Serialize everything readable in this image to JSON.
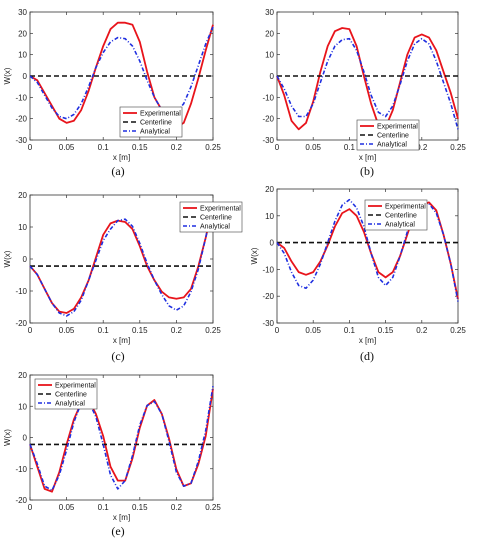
{
  "chart_data": [
    {
      "type": "line",
      "caption": "(a)",
      "xlabel": "x [m]",
      "ylabel": "W(x)",
      "xlim": [
        0,
        0.25
      ],
      "ylim": [
        -30,
        30
      ],
      "xticks": [
        "0",
        "0.05",
        "0.1",
        "0.15",
        "0.2",
        "0.25"
      ],
      "yticks": [
        "-30",
        "-20",
        "-10",
        "0",
        "10",
        "20",
        "30"
      ],
      "legend": "bottom-center",
      "series": [
        {
          "name": "Experimental",
          "color": "#e8141b",
          "dash": "solid",
          "x": [
            0,
            0.01,
            0.02,
            0.03,
            0.04,
            0.05,
            0.06,
            0.07,
            0.08,
            0.09,
            0.1,
            0.11,
            0.12,
            0.13,
            0.14,
            0.15,
            0.16,
            0.17,
            0.18,
            0.19,
            0.2,
            0.21,
            0.22,
            0.23,
            0.24,
            0.25
          ],
          "y": [
            0,
            -2,
            -8,
            -14,
            -20,
            -22,
            -21,
            -16,
            -7,
            4,
            14,
            22,
            25,
            25,
            24,
            16,
            2,
            -10,
            -16,
            -21,
            -24,
            -22,
            -13,
            -1,
            12,
            24
          ]
        },
        {
          "name": "Centerline",
          "color": "#111111",
          "dash": "dashed",
          "x": [
            0,
            0.25
          ],
          "y": [
            0,
            0
          ]
        },
        {
          "name": "Analytical",
          "color": "#1f2fe0",
          "dash": "dashdot",
          "x": [
            0,
            0.01,
            0.02,
            0.03,
            0.04,
            0.05,
            0.06,
            0.07,
            0.08,
            0.09,
            0.1,
            0.11,
            0.12,
            0.13,
            0.14,
            0.15,
            0.16,
            0.17,
            0.18,
            0.19,
            0.2,
            0.21,
            0.22,
            0.23,
            0.24,
            0.25
          ],
          "y": [
            0,
            -3,
            -9,
            -15,
            -19,
            -20,
            -18,
            -13,
            -5,
            4,
            11,
            16,
            18,
            17.5,
            14,
            7,
            -2,
            -10,
            -16,
            -18,
            -17,
            -13,
            -5,
            5,
            15,
            23
          ]
        }
      ]
    },
    {
      "type": "line",
      "caption": "(b)",
      "xlabel": "x [m]",
      "ylabel": "",
      "xlim": [
        0,
        0.25
      ],
      "ylim": [
        -30,
        30
      ],
      "xticks": [
        "0",
        "0.05",
        "0.1",
        "0.15",
        "0.2",
        "0.25"
      ],
      "yticks": [
        "-30",
        "-20",
        "-10",
        "0",
        "10",
        "20",
        "30"
      ],
      "legend": "bottom-left",
      "series": [
        {
          "name": "Experimental",
          "color": "#e8141b",
          "dash": "solid",
          "x": [
            0,
            0.01,
            0.02,
            0.03,
            0.04,
            0.05,
            0.06,
            0.07,
            0.08,
            0.09,
            0.1,
            0.11,
            0.12,
            0.13,
            0.14,
            0.15,
            0.16,
            0.17,
            0.18,
            0.19,
            0.2,
            0.21,
            0.22,
            0.23,
            0.24,
            0.25
          ],
          "y": [
            0,
            -9,
            -21,
            -25,
            -22,
            -12,
            2,
            14,
            21,
            22.5,
            22,
            14,
            0,
            -13,
            -23,
            -24,
            -16,
            -3,
            10,
            18,
            19.5,
            18,
            12,
            2,
            -8,
            -20
          ]
        },
        {
          "name": "Centerline",
          "color": "#111111",
          "dash": "dashed",
          "x": [
            0,
            0.25
          ],
          "y": [
            0,
            0
          ]
        },
        {
          "name": "Analytical",
          "color": "#1f2fe0",
          "dash": "dashdot",
          "x": [
            0,
            0.01,
            0.02,
            0.03,
            0.04,
            0.05,
            0.06,
            0.07,
            0.08,
            0.09,
            0.1,
            0.11,
            0.12,
            0.13,
            0.14,
            0.15,
            0.16,
            0.17,
            0.18,
            0.19,
            0.2,
            0.21,
            0.22,
            0.23,
            0.24,
            0.25
          ],
          "y": [
            0,
            -6,
            -14,
            -19,
            -19,
            -13,
            -3,
            7,
            14,
            17,
            17.5,
            12,
            2,
            -9,
            -17,
            -19,
            -14,
            -4,
            7,
            15,
            17.5,
            15,
            7,
            -3,
            -13,
            -25
          ]
        }
      ]
    },
    {
      "type": "line",
      "caption": "(c)",
      "xlabel": "x [m]",
      "ylabel": "W(x)",
      "xlim": [
        0,
        0.25
      ],
      "ylim": [
        -20,
        25
      ],
      "xticks": [
        "0",
        "0.05",
        "0.1",
        "0.15",
        "0.2",
        "0.25"
      ],
      "yticks": [
        "-20",
        "-10",
        "0",
        "10",
        "20"
      ],
      "legend": "top-right",
      "series": [
        {
          "name": "Experimental",
          "color": "#e8141b",
          "dash": "solid",
          "x": [
            0,
            0.01,
            0.02,
            0.03,
            0.04,
            0.05,
            0.06,
            0.07,
            0.08,
            0.09,
            0.1,
            0.11,
            0.12,
            0.13,
            0.14,
            0.15,
            0.16,
            0.17,
            0.18,
            0.19,
            0.2,
            0.21,
            0.22,
            0.23,
            0.24,
            0.25
          ],
          "y": [
            0,
            -3,
            -8,
            -13,
            -16,
            -16.5,
            -15,
            -11,
            -5,
            3,
            11,
            15,
            16,
            15.5,
            13,
            7,
            0,
            -5,
            -9,
            -11,
            -11.5,
            -11,
            -8,
            0,
            10,
            21
          ]
        },
        {
          "name": "Centerline",
          "color": "#111111",
          "dash": "dashed",
          "x": [
            0,
            0.25
          ],
          "y": [
            0,
            0
          ]
        },
        {
          "name": "Analytical",
          "color": "#1f2fe0",
          "dash": "dashdot",
          "x": [
            0,
            0.01,
            0.02,
            0.03,
            0.04,
            0.05,
            0.06,
            0.07,
            0.08,
            0.09,
            0.1,
            0.11,
            0.12,
            0.13,
            0.14,
            0.15,
            0.16,
            0.17,
            0.18,
            0.19,
            0.2,
            0.21,
            0.22,
            0.23,
            0.24,
            0.25
          ],
          "y": [
            0,
            -3,
            -8,
            -13,
            -16.5,
            -17.5,
            -16,
            -12,
            -5,
            2,
            9,
            13,
            16,
            16.5,
            14,
            8,
            1,
            -5,
            -10,
            -14,
            -15.5,
            -14,
            -9,
            -1,
            10,
            22
          ]
        }
      ]
    },
    {
      "type": "line",
      "caption": "(d)",
      "xlabel": "x [m]",
      "ylabel": "W(x)",
      "xlim": [
        0,
        0.25
      ],
      "ylim": [
        -30,
        20
      ],
      "xticks": [
        "0",
        "0.05",
        "0.1",
        "0.15",
        "0.2",
        "0.25"
      ],
      "yticks": [
        "-30",
        "-20",
        "-10",
        "0",
        "10",
        "20"
      ],
      "legend": "top-center",
      "series": [
        {
          "name": "Experimental",
          "color": "#e8141b",
          "dash": "solid",
          "x": [
            0,
            0.01,
            0.02,
            0.03,
            0.04,
            0.05,
            0.06,
            0.07,
            0.08,
            0.09,
            0.1,
            0.11,
            0.12,
            0.13,
            0.14,
            0.15,
            0.16,
            0.17,
            0.18,
            0.19,
            0.2,
            0.21,
            0.22,
            0.23,
            0.24,
            0.25
          ],
          "y": [
            0,
            -2,
            -7,
            -11,
            -12,
            -11,
            -7,
            -1,
            6,
            11,
            12.5,
            10,
            4,
            -4,
            -11,
            -13,
            -11,
            -5,
            3,
            11,
            14,
            15,
            12,
            3,
            -8,
            -21
          ]
        },
        {
          "name": "Centerline",
          "color": "#111111",
          "dash": "dashed",
          "x": [
            0,
            0.25
          ],
          "y": [
            0,
            0
          ]
        },
        {
          "name": "Analytical",
          "color": "#1f2fe0",
          "dash": "dashdot",
          "x": [
            0,
            0.01,
            0.02,
            0.03,
            0.04,
            0.05,
            0.06,
            0.07,
            0.08,
            0.09,
            0.1,
            0.11,
            0.12,
            0.13,
            0.14,
            0.15,
            0.16,
            0.17,
            0.18,
            0.19,
            0.2,
            0.21,
            0.22,
            0.23,
            0.24,
            0.25
          ],
          "y": [
            0,
            -4,
            -11,
            -16,
            -17,
            -14,
            -8,
            0,
            8,
            14,
            16,
            13,
            6,
            -4,
            -13,
            -16,
            -13,
            -5,
            4,
            11,
            14,
            14.5,
            11,
            3,
            -8,
            -22
          ]
        }
      ]
    },
    {
      "type": "line",
      "caption": "(e)",
      "xlabel": "x [m]",
      "ylabel": "W(x)",
      "xlim": [
        0,
        0.25
      ],
      "ylim": [
        -20,
        25
      ],
      "xticks": [
        "0",
        "0.05",
        "0.1",
        "0.15",
        "0.2",
        "0.25"
      ],
      "yticks": [
        "-20",
        "-10",
        "0",
        "10",
        "20"
      ],
      "legend": "top-left",
      "series": [
        {
          "name": "Experimental",
          "color": "#e8141b",
          "dash": "solid",
          "x": [
            0,
            0.01,
            0.02,
            0.03,
            0.04,
            0.05,
            0.06,
            0.07,
            0.08,
            0.09,
            0.1,
            0.11,
            0.12,
            0.13,
            0.14,
            0.15,
            0.16,
            0.17,
            0.18,
            0.19,
            0.2,
            0.21,
            0.22,
            0.23,
            0.24,
            0.25
          ],
          "y": [
            0,
            -8,
            -16,
            -17,
            -10,
            0,
            9,
            15,
            16,
            11,
            3,
            -8,
            -13,
            -13,
            -5,
            6,
            14,
            16,
            11,
            2,
            -9,
            -15,
            -14,
            -7,
            3,
            20
          ]
        },
        {
          "name": "Centerline",
          "color": "#111111",
          "dash": "dashed",
          "x": [
            0,
            0.25
          ],
          "y": [
            0,
            0
          ]
        },
        {
          "name": "Analytical",
          "color": "#1f2fe0",
          "dash": "dashdot",
          "x": [
            0,
            0.01,
            0.02,
            0.03,
            0.04,
            0.05,
            0.06,
            0.07,
            0.08,
            0.09,
            0.1,
            0.11,
            0.12,
            0.13,
            0.14,
            0.15,
            0.16,
            0.17,
            0.18,
            0.19,
            0.2,
            0.21,
            0.22,
            0.23,
            0.24,
            0.25
          ],
          "y": [
            0,
            -7,
            -15,
            -16.5,
            -11,
            -2,
            8,
            15,
            15.5,
            10,
            0,
            -11,
            -16,
            -13,
            -4,
            7,
            14,
            15.5,
            11,
            1,
            -10,
            -15,
            -14,
            -6,
            5,
            21
          ]
        }
      ]
    }
  ]
}
